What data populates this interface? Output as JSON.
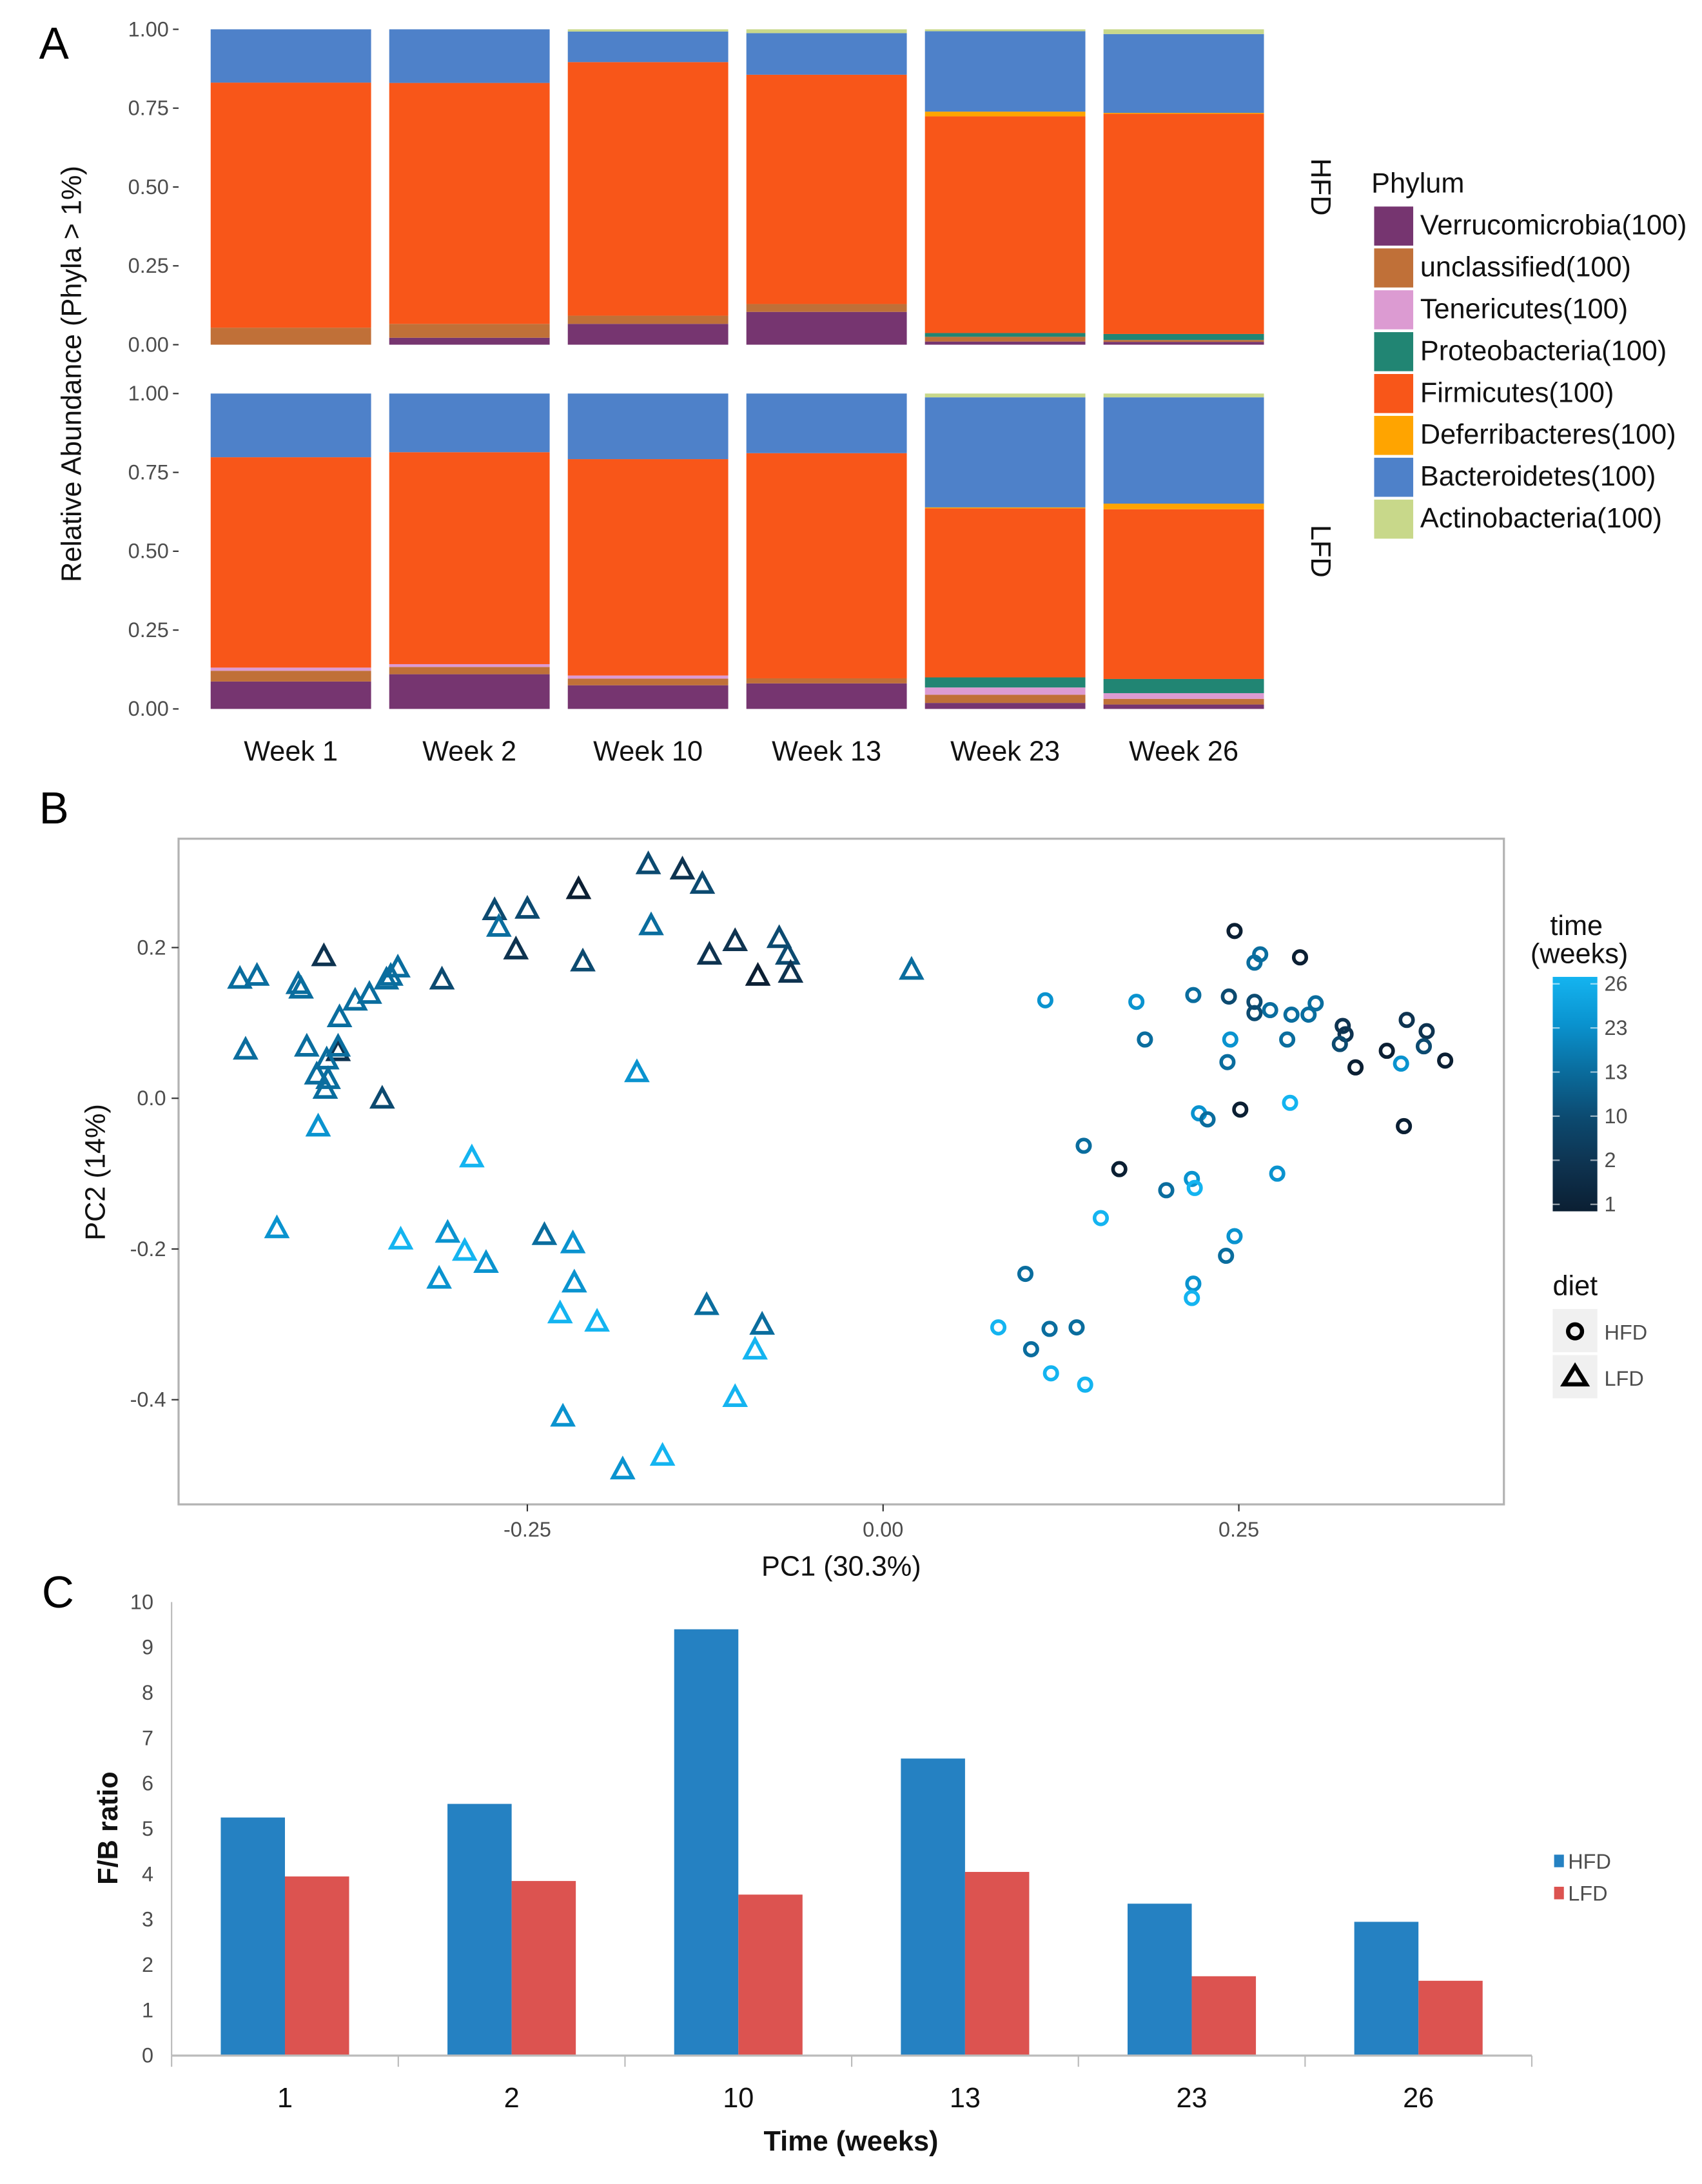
{
  "panel_labels": [
    "A",
    "B",
    "C"
  ],
  "chart_data": [
    {
      "type": "bar",
      "stacked": true,
      "panel": "A",
      "ylabel": "Relative Abundance (Phyla > 1%)",
      "ylim": [
        0,
        1
      ],
      "yticks": [
        "0.00",
        "0.25",
        "0.50",
        "0.75",
        "1.00"
      ],
      "categories": [
        "Week 1",
        "Week 2",
        "Week 10",
        "Week 13",
        "Week 23",
        "Week 26"
      ],
      "legend_title": "Phylum",
      "legend_position": "right",
      "phyla": [
        {
          "name": "Verrucomicrobia(100)",
          "key": "Verrucomicrobia",
          "color": "#763570"
        },
        {
          "name": "unclassified(100)",
          "key": "unclassified",
          "color": "#c07038"
        },
        {
          "name": "Tenericutes(100)",
          "key": "Tenericutes",
          "color": "#dc9bd2"
        },
        {
          "name": "Proteobacteria(100)",
          "key": "Proteobacteria",
          "color": "#218573"
        },
        {
          "name": "Firmicutes(100)",
          "key": "Firmicutes",
          "color": "#f85619"
        },
        {
          "name": "Deferribacteres(100)",
          "key": "Deferribacteres",
          "color": "#ffa400"
        },
        {
          "name": "Bacteroidetes(100)",
          "key": "Bacteroidetes",
          "color": "#4e81c9"
        },
        {
          "name": "Actinobacteria(100)",
          "key": "Actinobacteria",
          "color": "#c8d88a"
        }
      ],
      "facets": [
        {
          "label": "HFD",
          "values": [
            {
              "Verrucomicrobia": 0.0,
              "unclassified": 0.054,
              "Tenericutes": 0,
              "Proteobacteria": 0,
              "Firmicutes": 0.777,
              "Deferribacteres": 0,
              "Bacteroidetes": 0.169,
              "Actinobacteria": 0
            },
            {
              "Verrucomicrobia": 0.022,
              "unclassified": 0.044,
              "Tenericutes": 0,
              "Proteobacteria": 0,
              "Firmicutes": 0.764,
              "Deferribacteres": 0,
              "Bacteroidetes": 0.17,
              "Actinobacteria": 0
            },
            {
              "Verrucomicrobia": 0.066,
              "unclassified": 0.026,
              "Tenericutes": 0,
              "Proteobacteria": 0,
              "Firmicutes": 0.804,
              "Deferribacteres": 0,
              "Bacteroidetes": 0.097,
              "Actinobacteria": 0.007
            },
            {
              "Verrucomicrobia": 0.104,
              "unclassified": 0.025,
              "Tenericutes": 0,
              "Proteobacteria": 0,
              "Firmicutes": 0.727,
              "Deferribacteres": 0,
              "Bacteroidetes": 0.132,
              "Actinobacteria": 0.012
            },
            {
              "Verrucomicrobia": 0.01,
              "unclassified": 0.015,
              "Tenericutes": 0,
              "Proteobacteria": 0.012,
              "Firmicutes": 0.687,
              "Deferribacteres": 0.015,
              "Bacteroidetes": 0.255,
              "Actinobacteria": 0.006
            },
            {
              "Verrucomicrobia": 0.009,
              "unclassified": 0.006,
              "Tenericutes": 0,
              "Proteobacteria": 0.019,
              "Firmicutes": 0.698,
              "Deferribacteres": 0.003,
              "Bacteroidetes": 0.25,
              "Actinobacteria": 0.015
            }
          ]
        },
        {
          "label": "LFD",
          "values": [
            {
              "Verrucomicrobia": 0.087,
              "unclassified": 0.034,
              "Tenericutes": 0.01,
              "Proteobacteria": 0,
              "Firmicutes": 0.667,
              "Deferribacteres": 0,
              "Bacteroidetes": 0.202,
              "Actinobacteria": 0
            },
            {
              "Verrucomicrobia": 0.11,
              "unclassified": 0.023,
              "Tenericutes": 0.009,
              "Proteobacteria": 0,
              "Firmicutes": 0.672,
              "Deferribacteres": 0,
              "Bacteroidetes": 0.186,
              "Actinobacteria": 0
            },
            {
              "Verrucomicrobia": 0.075,
              "unclassified": 0.021,
              "Tenericutes": 0.01,
              "Proteobacteria": 0,
              "Firmicutes": 0.686,
              "Deferribacteres": 0,
              "Bacteroidetes": 0.208,
              "Actinobacteria": 0
            },
            {
              "Verrucomicrobia": 0.081,
              "unclassified": 0.016,
              "Tenericutes": 0,
              "Proteobacteria": 0,
              "Firmicutes": 0.714,
              "Deferribacteres": 0,
              "Bacteroidetes": 0.189,
              "Actinobacteria": 0
            },
            {
              "Verrucomicrobia": 0.019,
              "unclassified": 0.026,
              "Tenericutes": 0.023,
              "Proteobacteria": 0.032,
              "Firmicutes": 0.536,
              "Deferribacteres": 0.003,
              "Bacteroidetes": 0.349,
              "Actinobacteria": 0.012
            },
            {
              "Verrucomicrobia": 0.014,
              "unclassified": 0.018,
              "Tenericutes": 0.018,
              "Proteobacteria": 0.045,
              "Firmicutes": 0.538,
              "Deferribacteres": 0.018,
              "Bacteroidetes": 0.337,
              "Actinobacteria": 0.012
            }
          ]
        }
      ]
    },
    {
      "type": "scatter",
      "panel": "B",
      "xlabel": "PC1 (30.3%)",
      "ylabel": "PC2 (14%)",
      "xlim": [
        -0.495,
        0.437
      ],
      "ylim": [
        -0.538,
        0.345
      ],
      "xticks": [
        {
          "v": -0.25,
          "t": "-0.25"
        },
        {
          "v": 0,
          "t": "0.00"
        },
        {
          "v": 0.25,
          "t": "0.25"
        }
      ],
      "yticks": [
        {
          "v": 0.2,
          "t": "0.2"
        },
        {
          "v": 0,
          "t": "0.0"
        },
        {
          "v": -0.2,
          "t": "-0.2"
        },
        {
          "v": -0.4,
          "t": "-0.4"
        }
      ],
      "grid": false,
      "colorbar": {
        "title": "time\n(weeks)",
        "title_lines": [
          "time",
          "(weeks)"
        ],
        "ticks": [
          "26",
          "23",
          "13",
          "10",
          "2",
          "1"
        ],
        "colors": {
          "1": "#0b1f33",
          "2": "#0e3350",
          "10": "#0c4a70",
          "13": "#0a6d9e",
          "23": "#0a93cf",
          "26": "#14b4f0"
        }
      },
      "shape_legend": {
        "title": "diet",
        "items": [
          {
            "label": "HFD",
            "shape": "circle"
          },
          {
            "label": "LFD",
            "shape": "triangle"
          }
        ]
      },
      "points": {
        "LFD": [
          [
            -0.452,
            0.157,
            13
          ],
          [
            -0.44,
            0.161,
            13
          ],
          [
            -0.393,
            0.187,
            2
          ],
          [
            -0.411,
            0.15,
            13
          ],
          [
            -0.409,
            0.144,
            13
          ],
          [
            -0.341,
            0.172,
            13
          ],
          [
            -0.346,
            0.161,
            13
          ],
          [
            -0.349,
            0.156,
            13
          ],
          [
            -0.361,
            0.137,
            13
          ],
          [
            -0.371,
            0.128,
            13
          ],
          [
            -0.382,
            0.106,
            13
          ],
          [
            -0.31,
            0.156,
            10
          ],
          [
            -0.383,
            0.061,
            2
          ],
          [
            -0.448,
            0.063,
            13
          ],
          [
            -0.405,
            0.067,
            13
          ],
          [
            -0.383,
            0.067,
            13
          ],
          [
            -0.391,
            0.05,
            13
          ],
          [
            -0.398,
            0.03,
            13
          ],
          [
            -0.39,
            0.024,
            13
          ],
          [
            -0.392,
            0.011,
            13
          ],
          [
            -0.397,
            -0.039,
            23
          ],
          [
            -0.352,
            -0.002,
            10
          ],
          [
            -0.426,
            -0.174,
            23
          ],
          [
            -0.339,
            -0.189,
            26
          ],
          [
            -0.306,
            -0.18,
            23
          ],
          [
            -0.294,
            -0.204,
            26
          ],
          [
            -0.279,
            -0.22,
            23
          ],
          [
            -0.312,
            -0.241,
            23
          ],
          [
            -0.238,
            -0.183,
            13
          ],
          [
            -0.218,
            -0.194,
            23
          ],
          [
            -0.217,
            -0.246,
            23
          ],
          [
            -0.227,
            -0.287,
            26
          ],
          [
            -0.201,
            -0.298,
            26
          ],
          [
            -0.289,
            -0.08,
            26
          ],
          [
            -0.273,
            0.248,
            10
          ],
          [
            -0.27,
            0.226,
            13
          ],
          [
            -0.25,
            0.25,
            10
          ],
          [
            -0.258,
            0.196,
            2
          ],
          [
            -0.214,
            0.276,
            1
          ],
          [
            -0.211,
            0.18,
            10
          ],
          [
            -0.165,
            0.309,
            10
          ],
          [
            -0.163,
            0.228,
            13
          ],
          [
            -0.141,
            0.302,
            2
          ],
          [
            -0.127,
            0.283,
            10
          ],
          [
            -0.122,
            0.189,
            2
          ],
          [
            -0.104,
            0.207,
            2
          ],
          [
            -0.088,
            0.161,
            1
          ],
          [
            -0.073,
            0.211,
            10
          ],
          [
            -0.067,
            0.189,
            10
          ],
          [
            -0.065,
            0.165,
            2
          ],
          [
            0.02,
            0.169,
            13
          ],
          [
            -0.173,
            0.033,
            23
          ],
          [
            -0.124,
            -0.276,
            13
          ],
          [
            -0.085,
            -0.302,
            13
          ],
          [
            -0.09,
            -0.335,
            26
          ],
          [
            -0.104,
            -0.398,
            26
          ],
          [
            -0.225,
            -0.424,
            23
          ],
          [
            -0.183,
            -0.494,
            23
          ],
          [
            -0.155,
            -0.476,
            26
          ]
        ],
        "HFD": [
          [
            0.247,
            0.222,
            1
          ],
          [
            0.261,
            0.18,
            13
          ],
          [
            0.265,
            0.191,
            13
          ],
          [
            0.293,
            0.187,
            1
          ],
          [
            0.114,
            0.13,
            23
          ],
          [
            0.178,
            0.128,
            23
          ],
          [
            0.218,
            0.137,
            13
          ],
          [
            0.243,
            0.135,
            10
          ],
          [
            0.261,
            0.113,
            10
          ],
          [
            0.261,
            0.128,
            10
          ],
          [
            0.272,
            0.117,
            13
          ],
          [
            0.287,
            0.111,
            13
          ],
          [
            0.304,
            0.126,
            13
          ],
          [
            0.299,
            0.111,
            13
          ],
          [
            0.323,
            0.096,
            2
          ],
          [
            0.325,
            0.085,
            2
          ],
          [
            0.184,
            0.078,
            13
          ],
          [
            0.244,
            0.078,
            23
          ],
          [
            0.284,
            0.078,
            13
          ],
          [
            0.321,
            0.072,
            10
          ],
          [
            0.242,
            0.048,
            13
          ],
          [
            0.332,
            0.041,
            1
          ],
          [
            0.354,
            0.063,
            1
          ],
          [
            0.368,
            0.104,
            2
          ],
          [
            0.382,
            0.089,
            2
          ],
          [
            0.38,
            0.069,
            10
          ],
          [
            0.364,
            0.046,
            23
          ],
          [
            0.395,
            0.05,
            1
          ],
          [
            0.366,
            -0.037,
            1
          ],
          [
            0.222,
            -0.02,
            23
          ],
          [
            0.228,
            -0.028,
            13
          ],
          [
            0.251,
            -0.015,
            1
          ],
          [
            0.286,
            -0.006,
            26
          ],
          [
            0.141,
            -0.063,
            13
          ],
          [
            0.166,
            -0.094,
            1
          ],
          [
            0.199,
            -0.122,
            13
          ],
          [
            0.217,
            -0.107,
            23
          ],
          [
            0.219,
            -0.119,
            26
          ],
          [
            0.277,
            -0.1,
            23
          ],
          [
            0.153,
            -0.159,
            26
          ],
          [
            0.247,
            -0.183,
            23
          ],
          [
            0.241,
            -0.209,
            13
          ],
          [
            0.1,
            -0.233,
            13
          ],
          [
            0.218,
            -0.246,
            23
          ],
          [
            0.217,
            -0.265,
            26
          ],
          [
            0.081,
            -0.304,
            26
          ],
          [
            0.117,
            -0.306,
            13
          ],
          [
            0.136,
            -0.304,
            13
          ],
          [
            0.104,
            -0.333,
            13
          ],
          [
            0.118,
            -0.365,
            26
          ],
          [
            0.142,
            -0.38,
            26
          ]
        ]
      }
    },
    {
      "type": "bar",
      "panel": "C",
      "xlabel": "Time (weeks)",
      "ylabel": "F/B ratio",
      "ylim": [
        0,
        10
      ],
      "yticks": [
        "0",
        "1",
        "2",
        "3",
        "4",
        "5",
        "6",
        "7",
        "8",
        "9",
        "10"
      ],
      "categories": [
        "1",
        "2",
        "10",
        "13",
        "23",
        "26"
      ],
      "legend_position": "right",
      "series": [
        {
          "name": "HFD",
          "color": "#2581c2",
          "values": [
            5.25,
            5.55,
            9.4,
            6.55,
            3.35,
            2.95
          ]
        },
        {
          "name": "LFD",
          "color": "#dc5350",
          "values": [
            3.95,
            3.85,
            3.55,
            4.05,
            1.75,
            1.65
          ]
        }
      ]
    }
  ]
}
